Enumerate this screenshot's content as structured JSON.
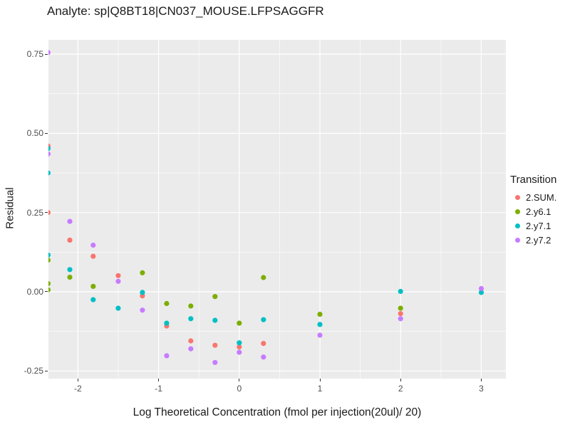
{
  "title": "Analyte: sp|Q8BT18|CN037_MOUSE.LFPSAGGFR",
  "x_axis": {
    "title": "Log Theoretical Concentration (fmol per injection(20ul)/ 20)",
    "tick_labels": [
      "-2",
      "-1",
      "0",
      "1",
      "2",
      "3"
    ]
  },
  "y_axis": {
    "title": "Residual",
    "tick_labels": [
      "0.75",
      "0.50",
      "0.25",
      "0.00",
      "-0.25"
    ]
  },
  "legend": {
    "title": "Transition",
    "entries": [
      {
        "label": "2.SUM.",
        "color": "#F8766D"
      },
      {
        "label": "2.y6.1",
        "color": "#7CAE00"
      },
      {
        "label": "2.y7.1",
        "color": "#00BFC4"
      },
      {
        "label": "2.y7.2",
        "color": "#C77CFF"
      }
    ]
  },
  "colors": {
    "panel_background": "#EBEBEB",
    "gridline": "#FFFFFF",
    "tick_text": "#4D4D4D",
    "tick_mark": "#333333"
  },
  "chart_data": {
    "type": "scatter",
    "title": "Analyte: sp|Q8BT18|CN037_MOUSE.LFPSAGGFR",
    "xlabel": "Log Theoretical Concentration (fmol per injection(20ul)/ 20)",
    "ylabel": "Residual",
    "legend_title": "Transition",
    "legend_position": "right",
    "grid": true,
    "x_domain": [
      -2.365,
      3.305
    ],
    "y_domain": [
      -0.274,
      0.795
    ],
    "x_major_ticks": [
      -2,
      -1,
      0,
      1,
      2,
      3
    ],
    "x_minor_gridlines": [
      -1.5,
      -0.5,
      0.5,
      1.5,
      2.5
    ],
    "y_major_ticks": [
      0.75,
      0.5,
      0.25,
      0,
      -0.25
    ],
    "y_minor_gridlines": [
      0.625,
      0.375,
      0.125,
      -0.125
    ],
    "point_radius": 3.6,
    "series": [
      {
        "name": "2.SUM.",
        "color": "#F8766D",
        "points": [
          [
            -2.37,
            0.46
          ],
          [
            -2.37,
            0.25
          ],
          [
            -2.1,
            0.163
          ],
          [
            -1.81,
            0.112
          ],
          [
            -1.5,
            0.051
          ],
          [
            -1.2,
            -0.013
          ],
          [
            -0.9,
            -0.108
          ],
          [
            -0.6,
            -0.155
          ],
          [
            -0.3,
            -0.169
          ],
          [
            0.0,
            -0.174
          ],
          [
            0.3,
            -0.163
          ],
          [
            2.0,
            -0.069
          ]
        ]
      },
      {
        "name": "2.y6.1",
        "color": "#7CAE00",
        "points": [
          [
            -2.37,
            0.1
          ],
          [
            -2.37,
            0.026
          ],
          [
            -2.37,
            0.006
          ],
          [
            -2.1,
            0.046
          ],
          [
            -1.81,
            0.017
          ],
          [
            -1.2,
            0.06
          ],
          [
            -0.9,
            -0.037
          ],
          [
            -0.6,
            -0.045
          ],
          [
            -0.3,
            -0.015
          ],
          [
            0.0,
            -0.099
          ],
          [
            0.3,
            0.045
          ],
          [
            1.0,
            -0.071
          ],
          [
            2.0,
            -0.052
          ]
        ]
      },
      {
        "name": "2.y7.1",
        "color": "#00BFC4",
        "points": [
          [
            -2.37,
            0.452
          ],
          [
            -2.37,
            0.375
          ],
          [
            -2.37,
            0.116
          ],
          [
            -2.1,
            0.07
          ],
          [
            -1.81,
            -0.025
          ],
          [
            -1.5,
            -0.052
          ],
          [
            -1.2,
            -0.002
          ],
          [
            -0.9,
            -0.099
          ],
          [
            -0.6,
            -0.085
          ],
          [
            -0.3,
            -0.09
          ],
          [
            0.0,
            -0.161
          ],
          [
            0.3,
            -0.088
          ],
          [
            1.0,
            -0.103
          ],
          [
            2.0,
            0.001
          ],
          [
            3.0,
            -0.002
          ]
        ]
      },
      {
        "name": "2.y7.2",
        "color": "#C77CFF",
        "points": [
          [
            -2.37,
            0.755
          ],
          [
            -2.37,
            0.435
          ],
          [
            -2.1,
            0.222
          ],
          [
            -1.81,
            0.147
          ],
          [
            -1.5,
            0.033
          ],
          [
            -1.2,
            -0.058
          ],
          [
            -0.9,
            -0.202
          ],
          [
            -0.6,
            -0.18
          ],
          [
            -0.3,
            -0.223
          ],
          [
            0.0,
            -0.191
          ],
          [
            0.3,
            -0.206
          ],
          [
            1.0,
            -0.137
          ],
          [
            2.0,
            -0.085
          ],
          [
            3.0,
            0.01
          ]
        ]
      }
    ]
  }
}
